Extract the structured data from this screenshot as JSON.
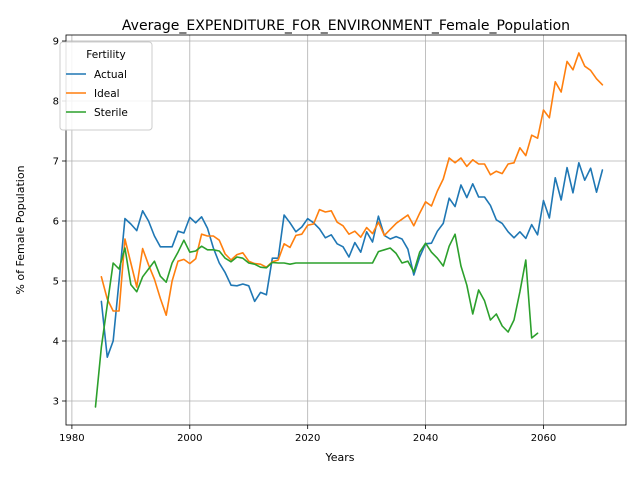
{
  "chart_data": {
    "type": "line",
    "title": "Average_EXPENDITURE_FOR_ENVIRONMENT_Female_Population",
    "xlabel": "Years",
    "ylabel": "% of Female Population",
    "xlim": [
      1979,
      2074
    ],
    "ylim": [
      2.6,
      9.1
    ],
    "xticks": [
      1980,
      2000,
      2020,
      2040,
      2060
    ],
    "yticks": [
      3,
      4,
      5,
      6,
      7,
      8,
      9
    ],
    "grid": true,
    "legend": {
      "title": "Fertility",
      "position": "top-left"
    },
    "series": [
      {
        "name": "Actual",
        "color": "#1f77b4",
        "x": [
          1985,
          1986,
          1987,
          1988,
          1989,
          1990,
          1991,
          1992,
          1993,
          1994,
          1995,
          1996,
          1997,
          1998,
          1999,
          2000,
          2001,
          2002,
          2003,
          2004,
          2005,
          2006,
          2007,
          2008,
          2009,
          2010,
          2011,
          2012,
          2013,
          2014,
          2015,
          2016,
          2017,
          2018,
          2019,
          2020,
          2021,
          2022,
          2023,
          2024,
          2025,
          2026,
          2027,
          2028,
          2029,
          2030,
          2031,
          2032,
          2033,
          2034,
          2035,
          2036,
          2037,
          2038,
          2039,
          2040,
          2041,
          2042,
          2043,
          2044,
          2045,
          2046,
          2047,
          2048,
          2049,
          2050,
          2051,
          2052,
          2053,
          2054,
          2055,
          2056,
          2057,
          2058,
          2059,
          2060,
          2061,
          2062,
          2063,
          2064,
          2065,
          2066,
          2067,
          2068,
          2069,
          2070
        ],
        "values": [
          4.66,
          3.73,
          4.0,
          5.0,
          6.04,
          5.95,
          5.84,
          6.17,
          6.0,
          5.75,
          5.57,
          5.57,
          5.57,
          5.83,
          5.8,
          6.06,
          5.97,
          6.07,
          5.88,
          5.55,
          5.3,
          5.14,
          4.93,
          4.92,
          4.95,
          4.92,
          4.66,
          4.81,
          4.77,
          5.38,
          5.38,
          6.1,
          5.97,
          5.82,
          5.9,
          6.04,
          5.97,
          5.87,
          5.72,
          5.77,
          5.62,
          5.57,
          5.4,
          5.64,
          5.48,
          5.82,
          5.65,
          6.08,
          5.76,
          5.7,
          5.74,
          5.7,
          5.53,
          5.1,
          5.4,
          5.62,
          5.63,
          5.83,
          5.96,
          6.38,
          6.24,
          6.6,
          6.39,
          6.62,
          6.4,
          6.4,
          6.26,
          6.02,
          5.96,
          5.82,
          5.72,
          5.82,
          5.71,
          5.94,
          5.77,
          6.34,
          6.05,
          6.72,
          6.35,
          6.89,
          6.47,
          6.97,
          6.68,
          6.88,
          6.48,
          6.85
        ]
      },
      {
        "name": "Ideal",
        "color": "#ff7f0e",
        "x": [
          1985,
          1986,
          1987,
          1988,
          1989,
          1990,
          1991,
          1992,
          1993,
          1994,
          1995,
          1996,
          1997,
          1998,
          1999,
          2000,
          2001,
          2002,
          2003,
          2004,
          2005,
          2006,
          2007,
          2008,
          2009,
          2010,
          2011,
          2012,
          2013,
          2014,
          2015,
          2016,
          2017,
          2018,
          2019,
          2020,
          2021,
          2022,
          2023,
          2024,
          2025,
          2026,
          2027,
          2028,
          2029,
          2030,
          2031,
          2032,
          2033,
          2034,
          2035,
          2036,
          2037,
          2038,
          2039,
          2040,
          2041,
          2042,
          2043,
          2044,
          2045,
          2046,
          2047,
          2048,
          2049,
          2050,
          2051,
          2052,
          2053,
          2054,
          2055,
          2056,
          2057,
          2058,
          2059,
          2060,
          2061,
          2062,
          2063,
          2064,
          2065,
          2066,
          2067,
          2068,
          2069,
          2070
        ],
        "values": [
          5.07,
          4.7,
          4.5,
          4.5,
          5.7,
          5.3,
          4.9,
          5.54,
          5.27,
          5.03,
          4.71,
          4.43,
          5.0,
          5.33,
          5.36,
          5.29,
          5.37,
          5.78,
          5.75,
          5.75,
          5.68,
          5.45,
          5.35,
          5.44,
          5.47,
          5.33,
          5.29,
          5.28,
          5.23,
          5.32,
          5.35,
          5.62,
          5.56,
          5.76,
          5.78,
          5.93,
          5.95,
          6.19,
          6.15,
          6.17,
          5.98,
          5.92,
          5.78,
          5.83,
          5.73,
          5.89,
          5.79,
          5.98,
          5.76,
          5.86,
          5.96,
          6.03,
          6.1,
          5.92,
          6.13,
          6.32,
          6.25,
          6.5,
          6.7,
          7.05,
          6.97,
          7.05,
          6.91,
          7.02,
          6.95,
          6.95,
          6.77,
          6.83,
          6.79,
          6.95,
          6.97,
          7.22,
          7.09,
          7.43,
          7.38,
          7.85,
          7.72,
          8.32,
          8.15,
          8.66,
          8.52,
          8.8,
          8.58,
          8.51,
          8.37,
          8.27
        ]
      },
      {
        "name": "Sterile",
        "color": "#2ca02c",
        "x": [
          1984,
          1985,
          1986,
          1987,
          1988,
          1989,
          1990,
          1991,
          1992,
          1993,
          1994,
          1995,
          1996,
          1997,
          1998,
          1999,
          2000,
          2001,
          2002,
          2003,
          2004,
          2005,
          2006,
          2007,
          2008,
          2009,
          2010,
          2011,
          2012,
          2013,
          2014,
          2015,
          2016,
          2017,
          2018,
          2019,
          2020,
          2021,
          2022,
          2023,
          2024,
          2025,
          2026,
          2027,
          2028,
          2029,
          2030,
          2031,
          2032,
          2033,
          2034,
          2035,
          2036,
          2037,
          2038,
          2039,
          2040,
          2041,
          2042,
          2043,
          2044,
          2045,
          2046,
          2047,
          2048,
          2049,
          2050,
          2051,
          2052,
          2053,
          2054,
          2055,
          2056,
          2057,
          2058,
          2059
        ],
        "values": [
          2.9,
          3.9,
          4.6,
          5.3,
          5.2,
          5.55,
          4.94,
          4.82,
          5.07,
          5.2,
          5.33,
          5.08,
          4.98,
          5.3,
          5.48,
          5.68,
          5.48,
          5.5,
          5.58,
          5.52,
          5.52,
          5.5,
          5.38,
          5.32,
          5.4,
          5.38,
          5.3,
          5.28,
          5.23,
          5.22,
          5.31,
          5.3,
          5.3,
          5.28,
          5.3,
          5.3,
          5.3,
          5.3,
          5.3,
          5.3,
          5.3,
          5.3,
          5.3,
          5.3,
          5.3,
          5.3,
          5.3,
          5.3,
          5.49,
          5.52,
          5.55,
          5.46,
          5.3,
          5.33,
          5.15,
          5.48,
          5.63,
          5.48,
          5.38,
          5.25,
          5.58,
          5.78,
          5.25,
          4.93,
          4.45,
          4.85,
          4.67,
          4.35,
          4.45,
          4.25,
          4.15,
          4.35,
          4.82,
          5.35,
          4.05,
          4.13
        ]
      }
    ]
  }
}
